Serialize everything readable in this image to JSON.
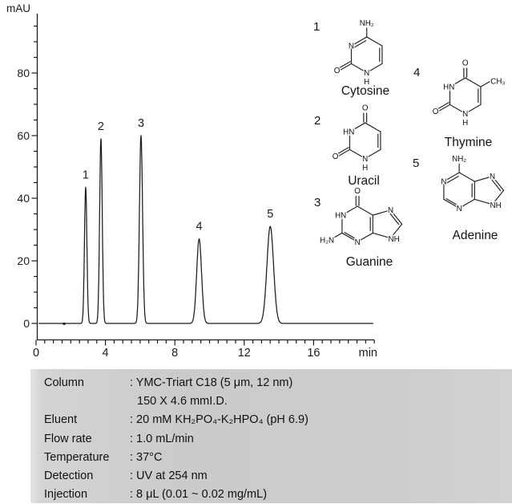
{
  "chart_data": {
    "type": "line",
    "ylabel": "mAU",
    "xlabel": "min",
    "xlim": [
      0,
      19.5
    ],
    "ylim": [
      0,
      97
    ],
    "x_ticks": [
      0,
      4,
      8,
      12,
      16
    ],
    "y_ticks": [
      0,
      20,
      40,
      60,
      80
    ],
    "x_minor_step": 0.5,
    "y_minor_step": 5,
    "baseline_mAU": 0,
    "injection_mark_min": 1.62,
    "peaks": [
      {
        "label": "1",
        "rt_min": 2.86,
        "height_mAU": 43.5,
        "sigma_min": 0.07
      },
      {
        "label": "2",
        "rt_min": 3.74,
        "height_mAU": 59.0,
        "sigma_min": 0.075
      },
      {
        "label": "3",
        "rt_min": 6.05,
        "height_mAU": 60.0,
        "sigma_min": 0.09
      },
      {
        "label": "4",
        "rt_min": 9.4,
        "height_mAU": 27.0,
        "sigma_min": 0.14
      },
      {
        "label": "5",
        "rt_min": 13.5,
        "height_mAU": 31.0,
        "sigma_min": 0.19
      }
    ]
  },
  "molecules": [
    {
      "num": "1",
      "name": "Cytosine",
      "atoms": {
        "amine": "NH₂",
        "n3": "N",
        "o2": "O",
        "n1": "N",
        "h1": "H"
      }
    },
    {
      "num": "2",
      "name": "Uracil",
      "atoms": {
        "o4": "O",
        "n3h": "HN",
        "o2": "O",
        "n1": "N",
        "h1": "H"
      }
    },
    {
      "num": "3",
      "name": "Guanine",
      "atoms": {
        "o6": "O",
        "n1h": "HN",
        "amine": "H₂N",
        "n3": "N",
        "n7": "N",
        "n9h": "NH"
      }
    },
    {
      "num": "4",
      "name": "Thymine",
      "atoms": {
        "o4": "O",
        "methyl": "CH₃",
        "n3h": "HN",
        "o2": "O",
        "n1": "N",
        "h1": "H"
      }
    },
    {
      "num": "5",
      "name": "Adenine",
      "atoms": {
        "amine": "NH₂",
        "n1": "N",
        "n3": "N",
        "n7": "N",
        "n9h": "NH"
      }
    }
  ],
  "conditions": {
    "rows": [
      {
        "label": "Column",
        "value": ": YMC-Triart C18 (5 μm, 12 nm)",
        "value_line2": "150 X 4.6 mmI.D."
      },
      {
        "label": "Eluent",
        "value": ": 20 mM KH₂PO₄-K₂HPO₄ (pH 6.9)"
      },
      {
        "label": "Flow rate",
        "value": ": 1.0 mL/min"
      },
      {
        "label": "Temperature",
        "value": ": 37°C"
      },
      {
        "label": "Detection",
        "value": ": UV at 254 nm"
      },
      {
        "label": "Injection",
        "value": ": 8 μL (0.01 ~ 0.02 mg/mL)"
      }
    ]
  },
  "colors": {
    "ink": "#1c1c1c",
    "panel_bg": "#cccccc"
  }
}
